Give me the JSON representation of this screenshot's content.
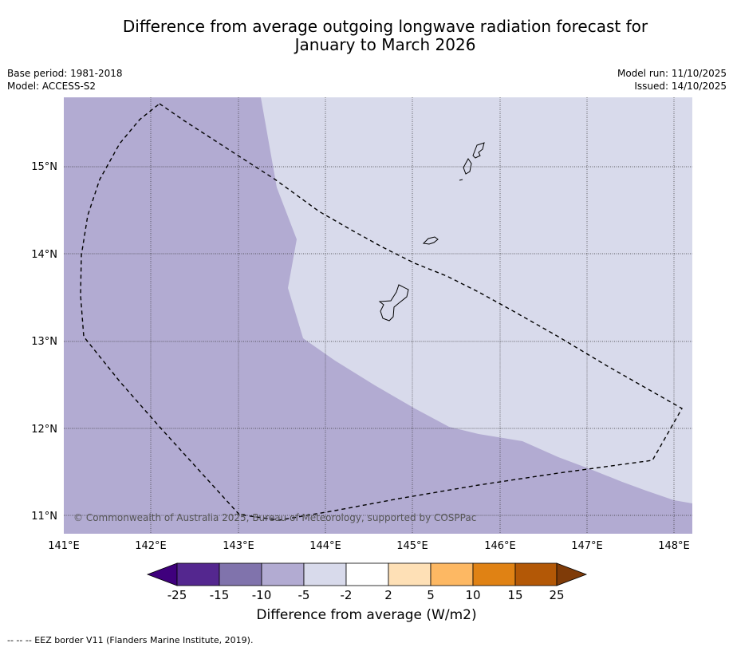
{
  "title_line1": "Difference from average outgoing longwave radiation forecast for",
  "title_line2": "January to March 2026",
  "meta_left": {
    "base_period": "Base period: 1981-2018",
    "model": "Model: ACCESS-S2"
  },
  "meta_right": {
    "model_run": "Model run: 11/10/2025",
    "issued": "Issued: 14/10/2025"
  },
  "copyright": "© Commonwealth of Australia 2025, Bureau of Meteorology, supported by COSPPac",
  "lat_labels": [
    "15°N",
    "14°N",
    "13°N",
    "12°N",
    "11°N"
  ],
  "lon_labels": [
    "141°E",
    "142°E",
    "143°E",
    "144°E",
    "145°E",
    "146°E",
    "147°E",
    "148°E"
  ],
  "colorbar": {
    "title": "Difference from average (W/m2)",
    "tick_labels": [
      "-25",
      "-15",
      "-10",
      "-5",
      "-2",
      "2",
      "5",
      "10",
      "15",
      "25"
    ],
    "colors": [
      "#3f007d",
      "#54278f",
      "#8073ac",
      "#b2abd2",
      "#d8daeb",
      "#ffffff",
      "#fee0b6",
      "#fdb863",
      "#e08214",
      "#b35806",
      "#7f3b08"
    ]
  },
  "fill_colors": {
    "moderate": "#b2abd2",
    "slight": "#d8daeb"
  },
  "footer": "--  --  -- EEZ border V11 (Flanders Marine Institute, 2019)."
}
